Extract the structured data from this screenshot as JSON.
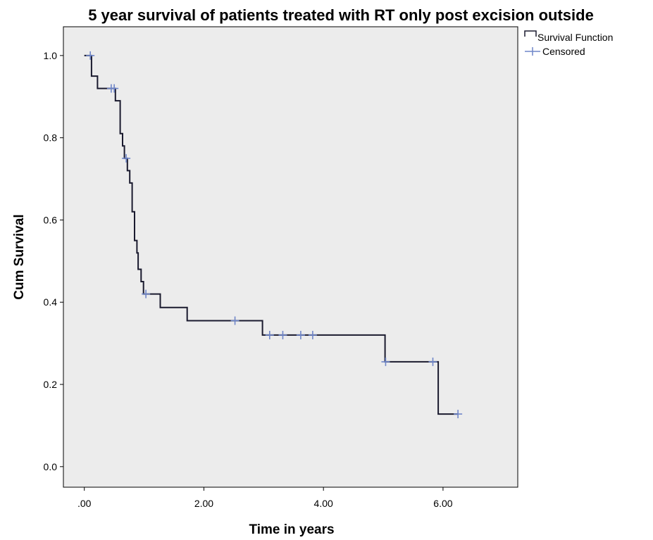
{
  "chart_data": {
    "type": "line",
    "title": "5 year survival of patients treated with RT only post excision outside",
    "xlabel": "Time in years",
    "ylabel": "Cum Survival",
    "xlim": [
      -0.35,
      7.25
    ],
    "ylim": [
      -0.05,
      1.07
    ],
    "x_ticks": [
      0,
      2,
      4,
      6
    ],
    "x_tick_labels": [
      ".00",
      "2.00",
      "4.00",
      "6.00"
    ],
    "y_ticks": [
      0,
      0.2,
      0.4,
      0.6,
      0.8,
      1.0
    ],
    "y_tick_labels": [
      "0.0",
      "0.2",
      "0.4",
      "0.6",
      "0.8",
      "1.0"
    ],
    "grid": false,
    "legend_position": "top-right",
    "colors": {
      "plot_background": "#ececec",
      "survival_line": "#1a1a2e",
      "censored_marker": "#6f86c9"
    },
    "series": [
      {
        "name": "Survival Function",
        "step_points": [
          [
            0,
            1.0
          ],
          [
            0.12,
            1.0
          ],
          [
            0.12,
            0.95
          ],
          [
            0.22,
            0.95
          ],
          [
            0.22,
            0.92
          ],
          [
            0.52,
            0.92
          ],
          [
            0.52,
            0.89
          ],
          [
            0.6,
            0.89
          ],
          [
            0.6,
            0.81
          ],
          [
            0.64,
            0.81
          ],
          [
            0.64,
            0.78
          ],
          [
            0.67,
            0.78
          ],
          [
            0.67,
            0.75
          ],
          [
            0.72,
            0.75
          ],
          [
            0.72,
            0.72
          ],
          [
            0.76,
            0.72
          ],
          [
            0.76,
            0.69
          ],
          [
            0.8,
            0.69
          ],
          [
            0.8,
            0.62
          ],
          [
            0.84,
            0.62
          ],
          [
            0.84,
            0.55
          ],
          [
            0.88,
            0.55
          ],
          [
            0.88,
            0.52
          ],
          [
            0.9,
            0.52
          ],
          [
            0.9,
            0.48
          ],
          [
            0.95,
            0.48
          ],
          [
            0.95,
            0.45
          ],
          [
            0.99,
            0.45
          ],
          [
            0.99,
            0.42
          ],
          [
            1.27,
            0.42
          ],
          [
            1.27,
            0.387
          ],
          [
            1.72,
            0.387
          ],
          [
            1.72,
            0.355
          ],
          [
            2.98,
            0.355
          ],
          [
            2.98,
            0.32
          ],
          [
            5.03,
            0.32
          ],
          [
            5.03,
            0.255
          ],
          [
            5.92,
            0.255
          ],
          [
            5.92,
            0.128
          ],
          [
            6.25,
            0.128
          ]
        ]
      },
      {
        "name": "Censored",
        "points": [
          [
            0.1,
            1.0
          ],
          [
            0.45,
            0.92
          ],
          [
            0.5,
            0.92
          ],
          [
            0.7,
            0.75
          ],
          [
            1.03,
            0.42
          ],
          [
            2.52,
            0.355
          ],
          [
            3.1,
            0.32
          ],
          [
            3.32,
            0.32
          ],
          [
            3.62,
            0.32
          ],
          [
            3.82,
            0.32
          ],
          [
            5.04,
            0.255
          ],
          [
            5.83,
            0.255
          ],
          [
            6.25,
            0.128
          ]
        ]
      }
    ]
  }
}
